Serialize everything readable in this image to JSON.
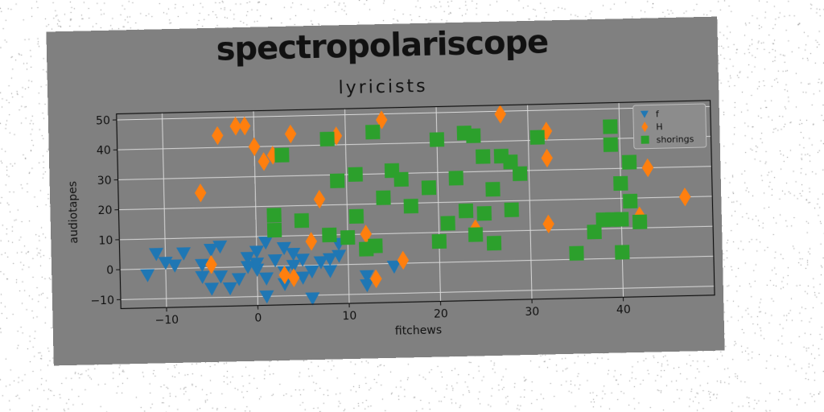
{
  "page_title": "spectropolariscope",
  "chart_data": {
    "type": "scatter",
    "title": "lyricists",
    "xlabel": "fitchews",
    "ylabel": "audiotapes",
    "xlim": [
      -15,
      50
    ],
    "ylim": [
      -13,
      52
    ],
    "xticks": [
      -10,
      0,
      10,
      20,
      30,
      40
    ],
    "yticks": [
      -10,
      0,
      10,
      20,
      30,
      40,
      50
    ],
    "grid": true,
    "legend_position": "top-right",
    "series": [
      {
        "name": "f",
        "marker": "triangle-down",
        "color": "#1f77b4",
        "points": [
          [
            -12,
            -2
          ],
          [
            -11,
            5
          ],
          [
            -10,
            2
          ],
          [
            -9,
            1
          ],
          [
            -8,
            5
          ],
          [
            -6,
            1
          ],
          [
            -6,
            -3
          ],
          [
            -5,
            -7
          ],
          [
            -5,
            6
          ],
          [
            -4,
            -3
          ],
          [
            -4,
            7
          ],
          [
            -3,
            -7
          ],
          [
            -2,
            -4
          ],
          [
            -1,
            3
          ],
          [
            -1,
            0
          ],
          [
            0,
            -1
          ],
          [
            0,
            1
          ],
          [
            0,
            5
          ],
          [
            1,
            -4
          ],
          [
            1,
            -10
          ],
          [
            1,
            8
          ],
          [
            2,
            2
          ],
          [
            3,
            -2
          ],
          [
            3,
            -6
          ],
          [
            3,
            6
          ],
          [
            4,
            0
          ],
          [
            4,
            4
          ],
          [
            5,
            -4
          ],
          [
            5,
            2
          ],
          [
            6,
            -2
          ],
          [
            6,
            -11
          ],
          [
            7,
            1
          ],
          [
            8,
            -2
          ],
          [
            8,
            2
          ],
          [
            9,
            3
          ],
          [
            9,
            7
          ],
          [
            12,
            -4
          ],
          [
            12,
            -7
          ],
          [
            15,
            -1
          ]
        ]
      },
      {
        "name": "H",
        "marker": "diamond",
        "color": "#ff7f0e",
        "points": [
          [
            -6,
            25
          ],
          [
            -5,
            1
          ],
          [
            -4,
            44
          ],
          [
            -2,
            47
          ],
          [
            -1,
            47
          ],
          [
            0,
            40
          ],
          [
            1,
            35
          ],
          [
            2,
            37
          ],
          [
            4,
            44
          ],
          [
            3,
            -3
          ],
          [
            4,
            -4
          ],
          [
            6,
            8
          ],
          [
            7,
            22
          ],
          [
            9,
            43
          ],
          [
            12,
            10
          ],
          [
            13,
            -5
          ],
          [
            14,
            48
          ],
          [
            16,
            1
          ],
          [
            24,
            11
          ],
          [
            27,
            49
          ],
          [
            32,
            43
          ],
          [
            32,
            34
          ],
          [
            32,
            12
          ],
          [
            43,
            30
          ],
          [
            42,
            14
          ],
          [
            47,
            20
          ]
        ]
      },
      {
        "name": "shorings",
        "marker": "square",
        "color": "#2ca02c",
        "points": [
          [
            2,
            17
          ],
          [
            2,
            12
          ],
          [
            3,
            37
          ],
          [
            5,
            15
          ],
          [
            8,
            42
          ],
          [
            8,
            10
          ],
          [
            9,
            28
          ],
          [
            10,
            9
          ],
          [
            11,
            30
          ],
          [
            11,
            16
          ],
          [
            12,
            5
          ],
          [
            13,
            44
          ],
          [
            13,
            6
          ],
          [
            14,
            22
          ],
          [
            15,
            31
          ],
          [
            16,
            28
          ],
          [
            17,
            19
          ],
          [
            19,
            25
          ],
          [
            20,
            41
          ],
          [
            20,
            7
          ],
          [
            21,
            13
          ],
          [
            22,
            28
          ],
          [
            23,
            43
          ],
          [
            24,
            42
          ],
          [
            23,
            17
          ],
          [
            24,
            9
          ],
          [
            25,
            35
          ],
          [
            25,
            16
          ],
          [
            26,
            24
          ],
          [
            26,
            6
          ],
          [
            27,
            35
          ],
          [
            28,
            33
          ],
          [
            28,
            17
          ],
          [
            29,
            29
          ],
          [
            31,
            41
          ],
          [
            35,
            2
          ],
          [
            37,
            9
          ],
          [
            38,
            13
          ],
          [
            39,
            13
          ],
          [
            40,
            13
          ],
          [
            39,
            44
          ],
          [
            39,
            38
          ],
          [
            40,
            25
          ],
          [
            40,
            2
          ],
          [
            41,
            19
          ],
          [
            41,
            32
          ],
          [
            42,
            12
          ]
        ]
      }
    ]
  }
}
